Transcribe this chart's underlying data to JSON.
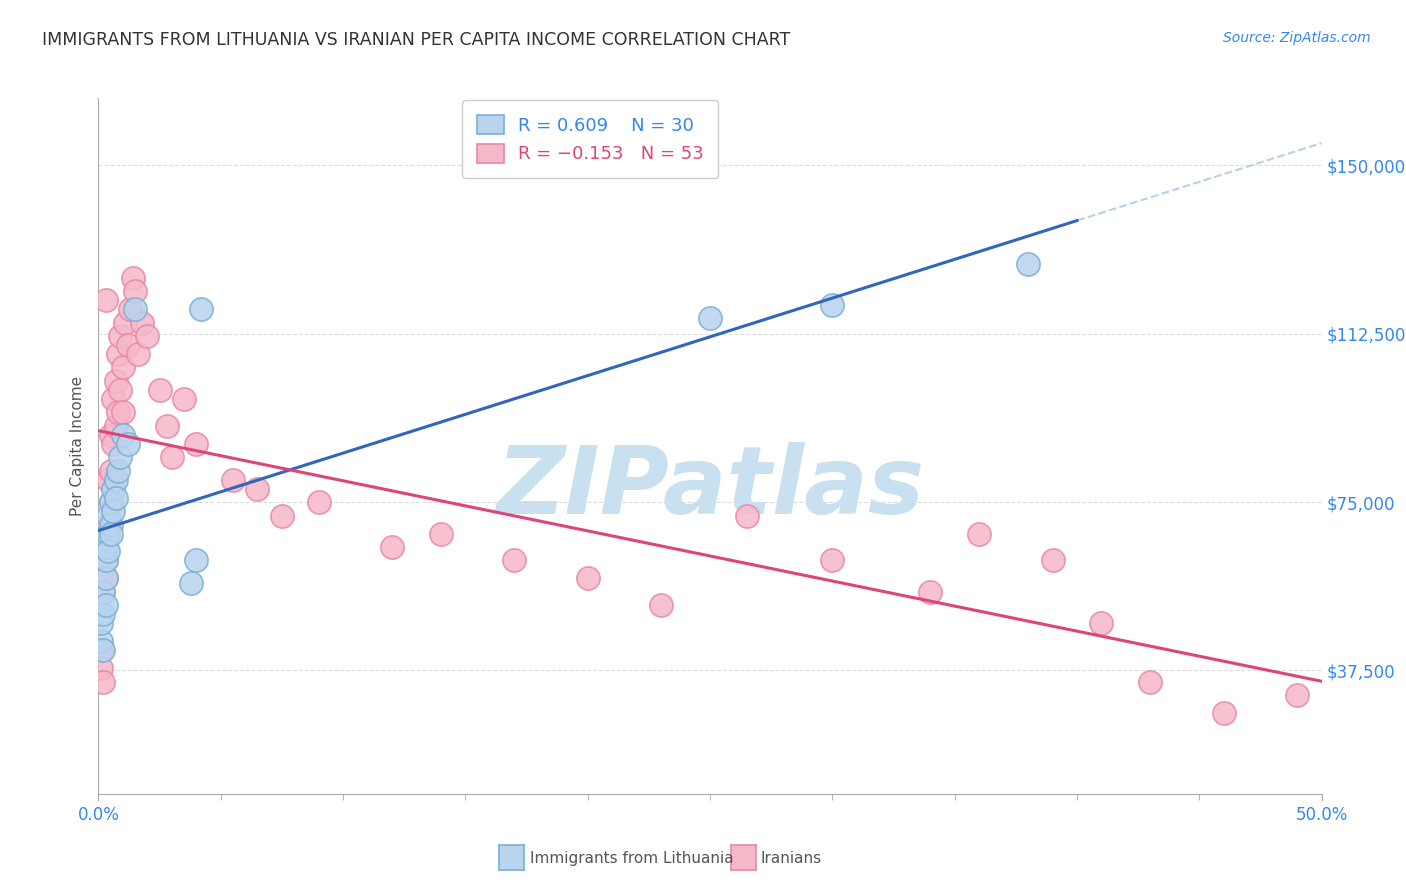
{
  "title": "IMMIGRANTS FROM LITHUANIA VS IRANIAN PER CAPITA INCOME CORRELATION CHART",
  "source": "Source: ZipAtlas.com",
  "ylabel": "Per Capita Income",
  "xlim": [
    0.0,
    0.5
  ],
  "ylim": [
    10000,
    165000
  ],
  "yticks": [
    37500,
    75000,
    112500,
    150000
  ],
  "ytick_labels": [
    "$37,500",
    "$75,000",
    "$112,500",
    "$150,000"
  ],
  "bg": "#ffffff",
  "grid_color": "#dddddd",
  "title_color": "#333333",
  "watermark_text": "ZIPatlas",
  "watermark_color": "#c8e0f0",
  "blue_face": "#b8d4ee",
  "blue_edge": "#7aafd4",
  "pink_face": "#f5b8c8",
  "pink_edge": "#e888a8",
  "blue_line": "#3366bb",
  "pink_line": "#dd4477",
  "gray_dash": "#b8d0e8",
  "tick_color": "#3388ee",
  "lith_x": [
    0.001,
    0.001,
    0.002,
    0.002,
    0.002,
    0.003,
    0.003,
    0.003,
    0.003,
    0.004,
    0.004,
    0.004,
    0.005,
    0.005,
    0.005,
    0.006,
    0.006,
    0.007,
    0.007,
    0.008,
    0.009,
    0.01,
    0.012,
    0.015,
    0.038,
    0.04,
    0.042,
    0.25,
    0.3,
    0.38
  ],
  "lith_y": [
    44000,
    48000,
    50000,
    55000,
    42000,
    58000,
    52000,
    62000,
    65000,
    68000,
    64000,
    72000,
    70000,
    75000,
    68000,
    78000,
    73000,
    80000,
    76000,
    82000,
    85000,
    90000,
    88000,
    118000,
    57000,
    62000,
    118000,
    116000,
    119000,
    128000
  ],
  "iran_x": [
    0.001,
    0.001,
    0.002,
    0.002,
    0.003,
    0.003,
    0.003,
    0.004,
    0.004,
    0.005,
    0.005,
    0.005,
    0.006,
    0.006,
    0.007,
    0.007,
    0.008,
    0.008,
    0.009,
    0.009,
    0.01,
    0.01,
    0.011,
    0.012,
    0.013,
    0.014,
    0.015,
    0.016,
    0.018,
    0.02,
    0.025,
    0.028,
    0.03,
    0.035,
    0.04,
    0.055,
    0.065,
    0.075,
    0.09,
    0.12,
    0.14,
    0.17,
    0.2,
    0.23,
    0.265,
    0.3,
    0.34,
    0.36,
    0.39,
    0.41,
    0.43,
    0.46,
    0.49
  ],
  "iran_y": [
    42000,
    38000,
    55000,
    35000,
    62000,
    58000,
    120000,
    70000,
    80000,
    90000,
    82000,
    75000,
    98000,
    88000,
    102000,
    92000,
    108000,
    95000,
    112000,
    100000,
    105000,
    95000,
    115000,
    110000,
    118000,
    125000,
    122000,
    108000,
    115000,
    112000,
    100000,
    92000,
    85000,
    98000,
    88000,
    80000,
    78000,
    72000,
    75000,
    65000,
    68000,
    62000,
    58000,
    52000,
    72000,
    62000,
    55000,
    68000,
    62000,
    48000,
    35000,
    28000,
    32000
  ]
}
